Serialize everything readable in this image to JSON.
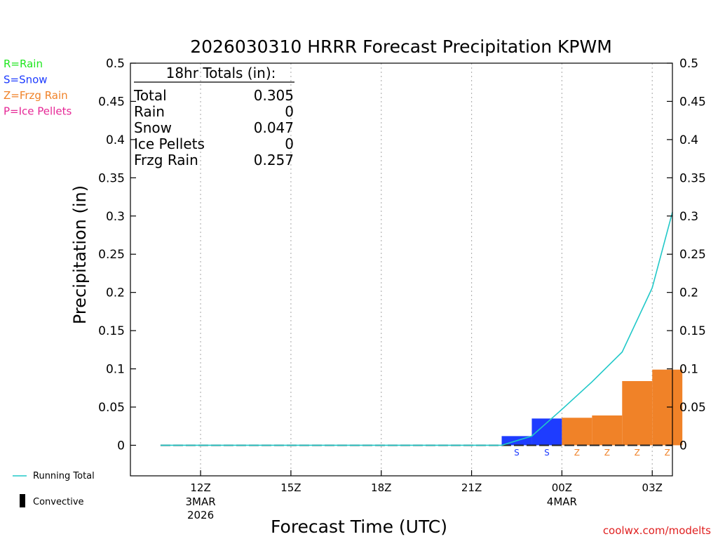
{
  "chart_data": {
    "type": "bar",
    "title": "2026030310 HRRR Forecast Precipitation KPWM",
    "xlabel": "Forecast Time (UTC)",
    "ylabel": "Precipitation (in)",
    "ylim": [
      -0.04,
      0.5
    ],
    "xlim": [
      9.67,
      27.67
    ],
    "y_ticks": [
      0,
      0.05,
      0.1,
      0.15,
      0.2,
      0.25,
      0.3,
      0.35,
      0.4,
      0.45,
      0.5
    ],
    "y_tick_labels": [
      "0",
      "0.05",
      "0.1",
      "0.15",
      "0.2",
      "0.25",
      "0.3",
      "0.35",
      "0.4",
      "0.45",
      "0.5"
    ],
    "x_ticks": [
      {
        "x": 12,
        "line1": "12Z",
        "line2": "3MAR",
        "line3": "2026"
      },
      {
        "x": 15,
        "line1": "15Z",
        "line2": "",
        "line3": ""
      },
      {
        "x": 18,
        "line1": "18Z",
        "line2": "",
        "line3": ""
      },
      {
        "x": 21,
        "line1": "21Z",
        "line2": "",
        "line3": ""
      },
      {
        "x": 24,
        "line1": "00Z",
        "line2": "4MAR",
        "line3": ""
      },
      {
        "x": 27,
        "line1": "03Z",
        "line2": "",
        "line3": ""
      }
    ],
    "hours": [
      11,
      12,
      13,
      14,
      15,
      16,
      17,
      18,
      19,
      20,
      21,
      22,
      23,
      24,
      25,
      26,
      27,
      28
    ],
    "hourly_precip": [
      0,
      0,
      0,
      0,
      0,
      0,
      0,
      0,
      0,
      0,
      0,
      0,
      0.012,
      0.035,
      0.036,
      0.039,
      0.084,
      0.099
    ],
    "precip_type": [
      "",
      "",
      "",
      "",
      "",
      "",
      "",
      "",
      "",
      "",
      "",
      "",
      "S",
      "S",
      "Z",
      "Z",
      "Z",
      "Z"
    ],
    "convective": [
      false,
      false,
      false,
      false,
      false,
      false,
      false,
      false,
      false,
      false,
      false,
      false,
      false,
      false,
      false,
      false,
      false,
      false
    ],
    "running_total": {
      "x": [
        10.67,
        22,
        23,
        24,
        25,
        26,
        27,
        27.67
      ],
      "y": [
        0,
        0,
        0.012,
        0.047,
        0.083,
        0.122,
        0.206,
        0.305
      ]
    },
    "type_colors": {
      "S": "#1e3cff",
      "Z": "#f08228",
      "R": "#1ee61e",
      "P": "#e62896"
    },
    "running_total_color": "#20c8c8",
    "legend_precip_types": [
      {
        "label": "R=Rain",
        "color": "#1ee61e"
      },
      {
        "label": "S=Snow",
        "color": "#1e3cff"
      },
      {
        "label": "Z=Frzg Rain",
        "color": "#f08228"
      },
      {
        "label": "P=Ice Pellets",
        "color": "#e62896"
      }
    ],
    "legend_lines": {
      "running_total": "Running Total",
      "convective": "Convective"
    },
    "totals_box": {
      "title": "18hr Totals (in):",
      "rows": [
        {
          "label": "Total",
          "value": "0.305"
        },
        {
          "label": "Rain",
          "value": "0"
        },
        {
          "label": "Snow",
          "value": "0.047"
        },
        {
          "label": "Ice Pellets",
          "value": "0"
        },
        {
          "label": "Frzg Rain",
          "value": "0.257"
        }
      ]
    },
    "credit": "coolwx.com/modelts"
  }
}
